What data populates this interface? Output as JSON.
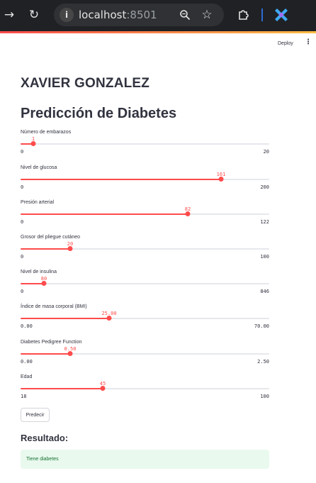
{
  "browser": {
    "url_host": "localhost",
    "url_port": ":8501",
    "icons": [
      "arrow-forward-icon",
      "reload-icon",
      "site-info-icon",
      "zoom-icon",
      "bookmark-star-icon",
      "extensions-puzzle-icon",
      "extension-app-icon"
    ]
  },
  "header": {
    "deploy_label": "Deploy",
    "menu_label": "⋮"
  },
  "titles": {
    "name": "XAVIER GONZALEZ",
    "main": "Predicción de Diabetes"
  },
  "colors": {
    "accent": "#ff4b4b",
    "track": "#e6e8ec",
    "success_bg": "#e9f9ee",
    "success_text": "#177233"
  },
  "sliders": [
    {
      "label": "Número de embarazos",
      "value": "1",
      "min": "0",
      "max": "20",
      "num": 1,
      "lo": 0,
      "hi": 20
    },
    {
      "label": "Nivel de glucosa",
      "value": "161",
      "min": "0",
      "max": "200",
      "num": 161,
      "lo": 0,
      "hi": 200
    },
    {
      "label": "Presión arterial",
      "value": "82",
      "min": "0",
      "max": "122",
      "num": 82,
      "lo": 0,
      "hi": 122
    },
    {
      "label": "Grosor del pliegue cutáneo",
      "value": "20",
      "min": "0",
      "max": "100",
      "num": 20,
      "lo": 0,
      "hi": 100
    },
    {
      "label": "Nivel de insulina",
      "value": "80",
      "min": "0",
      "max": "846",
      "num": 80,
      "lo": 0,
      "hi": 846
    },
    {
      "label": "Índice de masa corporal (BMI)",
      "value": "25.00",
      "min": "0.00",
      "max": "70.00",
      "num": 25,
      "lo": 0,
      "hi": 70
    },
    {
      "label": "Diabetes Pedigree Function",
      "value": "0.50",
      "min": "0.00",
      "max": "2.50",
      "num": 0.5,
      "lo": 0,
      "hi": 2.5
    },
    {
      "label": "Edad",
      "value": "45",
      "min": "18",
      "max": "100",
      "num": 45,
      "lo": 18,
      "hi": 100
    }
  ],
  "actions": {
    "predict_label": "Predecir"
  },
  "result": {
    "heading": "Resultado:",
    "message": "Tiene diabetes"
  }
}
